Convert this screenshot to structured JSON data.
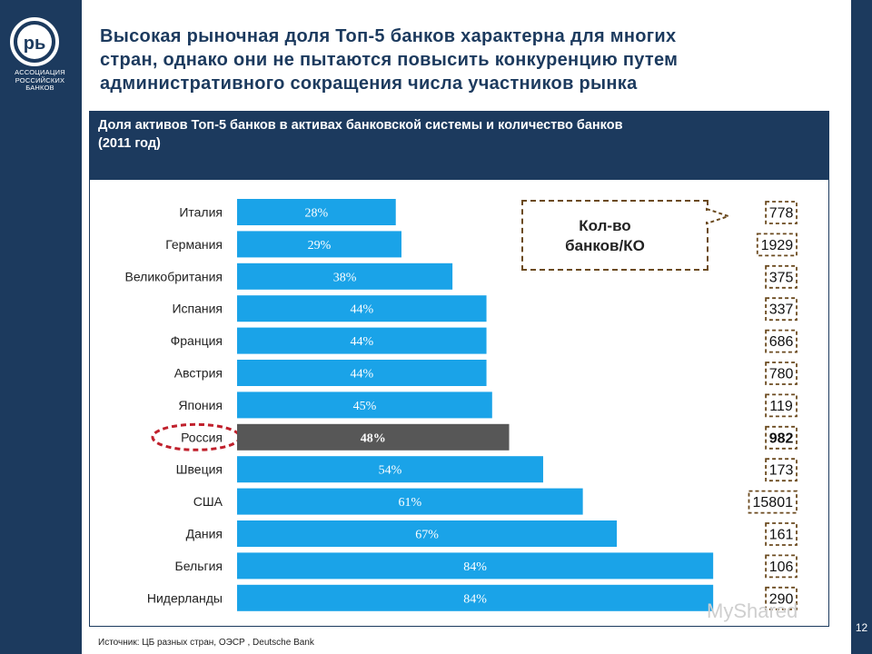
{
  "logo": {
    "letters": "рь",
    "line1": "АССОЦИАЦИЯ",
    "line2": "РОССИЙСКИХ",
    "line3": "БАНКОВ"
  },
  "title_lines": [
    "Высокая рыночная доля Топ-5 банков характерна для многих",
    "стран, однако они не пытаются повысить конкуренцию путем",
    "административного сокращения числа участников рынка"
  ],
  "panel": {
    "title_lines": [
      "Доля активов Топ-5 банков в активах банковской системы и количество банков",
      "(2011 год)"
    ]
  },
  "legend_label_lines": [
    "Кол-во",
    "банков/КО"
  ],
  "source": "Источник: ЦБ разных стран, ОЭСР , Deutsche Bank",
  "page_number": "12",
  "watermark": "MyShared",
  "colors": {
    "bar": "#1aa3e8",
    "highlight_bar": "#575757",
    "navy": "#1c3a5e",
    "highlight_ellipse": "#c0202c",
    "count_border": "#6b4a1f"
  },
  "chart_data": {
    "type": "bar",
    "orientation": "horizontal",
    "xlim": [
      0,
      100
    ],
    "categories": [
      "Италия",
      "Германия",
      "Великобритания",
      "Испания",
      "Франция",
      "Австрия",
      "Япония",
      "Россия",
      "Швеция",
      "США",
      "Дания",
      "Бельгия",
      "Нидерланды"
    ],
    "values": [
      28,
      29,
      38,
      44,
      44,
      44,
      45,
      48,
      54,
      61,
      67,
      84,
      84
    ],
    "value_labels": [
      "28%",
      "29%",
      "38%",
      "44%",
      "44%",
      "44%",
      "45%",
      "48%",
      "54%",
      "61%",
      "67%",
      "84%",
      "84%"
    ],
    "highlight_category": "Россия",
    "bank_counts": [
      "778",
      "1929",
      "375",
      "337",
      "686",
      "780",
      "119",
      "982",
      "173",
      "15801",
      "161",
      "106",
      "290"
    ]
  }
}
